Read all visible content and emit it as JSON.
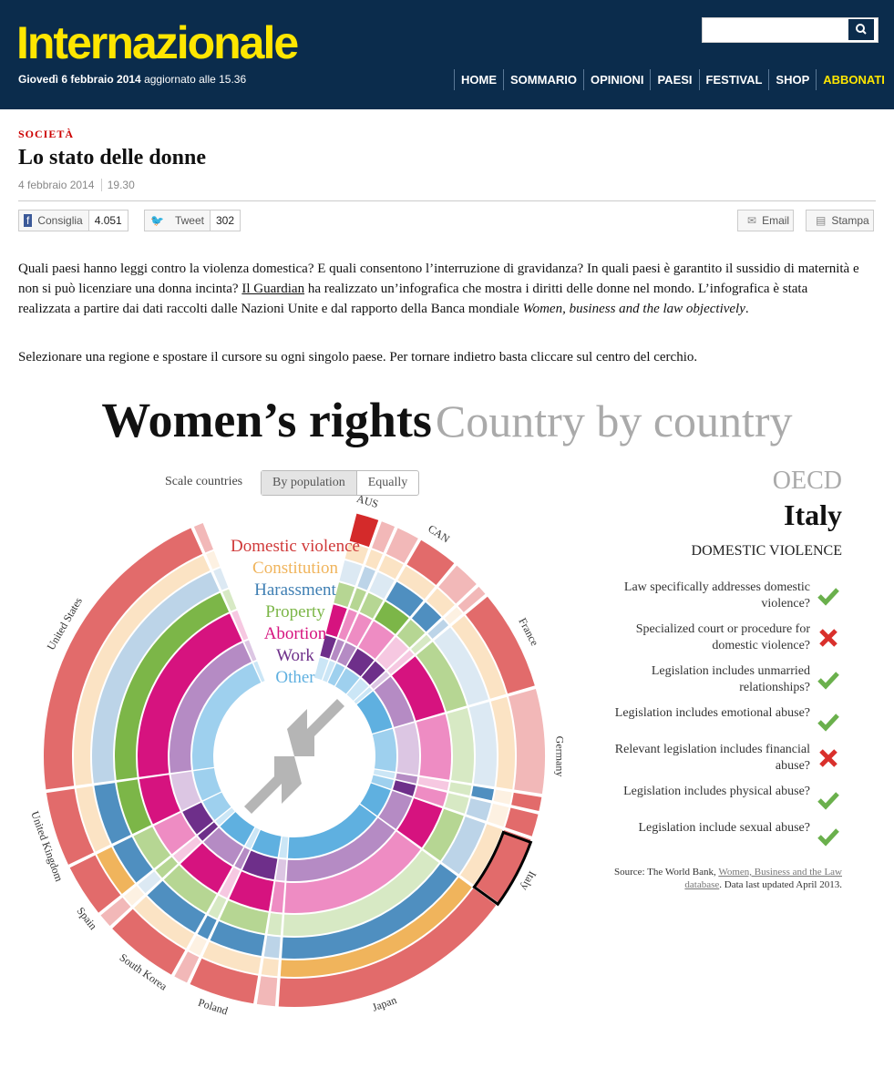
{
  "header": {
    "logo": "Internazionale",
    "date": "Giovedì 6 febbraio 2014",
    "updated": "aggiornato alle 15.36",
    "nav": [
      "HOME",
      "SOMMARIO",
      "OPINIONI",
      "PAESI",
      "FESTIVAL",
      "SHOP",
      "ABBONATI"
    ]
  },
  "article": {
    "section": "SOCIETÀ",
    "title": "Lo stato delle donne",
    "date": "4 febbraio 2014",
    "time": "19.30",
    "share": {
      "like": "Consiglia",
      "like_count": "4.051",
      "tweet": "Tweet",
      "tweet_count": "302",
      "email": "Email",
      "print": "Stampa"
    },
    "paragraph1": [
      "Quali paesi hanno leggi contro la violenza domestica? E quali consentono l’interruzione di gravidanza? In quali paesi è garantito il sussidio di maternità e non si può licenziare una donna incinta? ",
      "Il Guardian",
      " ha realizzato un’infografica che mostra i diritti delle donne nel mondo. L’infografica è stata realizzata a partire dai dati raccolti dalle Nazioni Unite e dal rapporto della Banca mondiale ",
      "Women, business and the law objectively",
      "."
    ],
    "paragraph2": "Selezionare una regione e spostare il cursore su ogni singolo paese. Per tornare indietro basta cliccare sul centro del cerchio."
  },
  "infographic": {
    "title": "Women’s rights",
    "subtitle": "Country by country",
    "scale_label": "Scale countries",
    "scale_options": [
      "By population",
      "Equally"
    ],
    "categories": [
      "Domestic violence",
      "Constitution",
      "Harassment",
      "Property",
      "Abortion",
      "Work",
      "Other"
    ],
    "countries": [
      "AUS",
      "CAN",
      "France",
      "Germany",
      "Italy",
      "Japan",
      "Poland",
      "South Korea",
      "Spain",
      "United Kingdom",
      "United States"
    ],
    "region": "OECD",
    "country": "Italy",
    "topic": "DOMESTIC VIOLENCE",
    "questions": [
      {
        "text": "Law specifically addresses domestic violence?",
        "answer": true
      },
      {
        "text": "Specialized court or procedure for domestic violence?",
        "answer": false
      },
      {
        "text": "Legislation includes unmarried relationships?",
        "answer": true
      },
      {
        "text": "Legislation includes emotional abuse?",
        "answer": true
      },
      {
        "text": "Relevant legislation includes financial abuse?",
        "answer": false
      },
      {
        "text": "Legislation includes physical abuse?",
        "answer": true
      },
      {
        "text": "Legislation include sexual abuse?",
        "answer": true
      }
    ],
    "source": [
      "Source: The World Bank, ",
      "Women, Business and the Law database",
      ". Data last updated April 2013."
    ]
  }
}
